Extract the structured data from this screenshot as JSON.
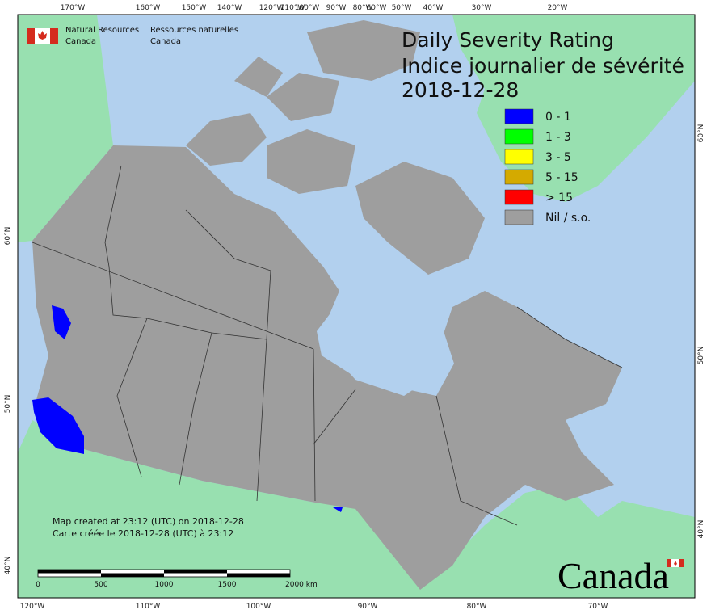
{
  "header": {
    "org_en": [
      "Natural Resources",
      "Canada"
    ],
    "org_fr": [
      "Ressources naturelles",
      "Canada"
    ]
  },
  "title": [
    "Daily Severity Rating",
    "Indice journalier de sévérité",
    "2018-12-28"
  ],
  "legend": [
    {
      "label": "0 - 1",
      "color": "#0000ff"
    },
    {
      "label": "1 - 3",
      "color": "#00ff00"
    },
    {
      "label": "3 - 5",
      "color": "#ffff00"
    },
    {
      "label": "5 - 15",
      "color": "#d4aa00"
    },
    {
      "label": "> 15",
      "color": "#ff0000"
    },
    {
      "label": "Nil / s.o.",
      "color": "#9e9e9e"
    }
  ],
  "graticule": {
    "top": [
      "170°W",
      "160°W",
      "150°W",
      "140°W",
      "120°W",
      "110°W",
      "100°W",
      "90°W",
      "80°W",
      "60°W",
      "50°W",
      "40°W",
      "30°W",
      "20°W"
    ],
    "bottom": [
      "120°W",
      "110°W",
      "100°W",
      "90°W",
      "80°W",
      "70°W"
    ],
    "left": [
      "60°N",
      "50°N",
      "40°N"
    ],
    "right": [
      "60°N",
      "50°N",
      "40°N"
    ]
  },
  "notes": [
    "Map created at 23:12 (UTC) on 2018-12-28",
    "Carte créée le 2018-12-28 (UTC) à 23:12"
  ],
  "scale_bar": [
    "0",
    "500",
    "1000",
    "1500",
    "2000  km"
  ],
  "wordmark": "Canada"
}
